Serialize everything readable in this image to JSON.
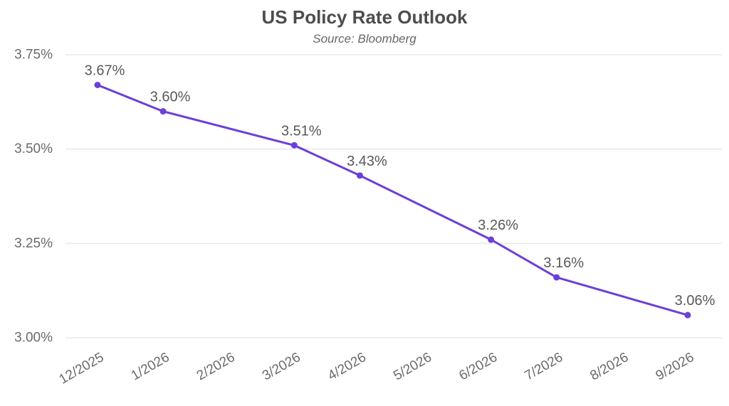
{
  "header": {
    "title": "US Policy Rate Outlook",
    "subtitle": "Source: Bloomberg"
  },
  "colors": {
    "background": "#ffffff",
    "line": "#6B3FD8",
    "marker": "#6B3FD8",
    "grid": "#e9e9ec",
    "title": "#4d4d4d",
    "subtitle": "#666666",
    "tick_label": "#6a6a6a",
    "data_label": "#585858"
  },
  "chart_data": {
    "type": "line",
    "title": "US Policy Rate Outlook",
    "subtitle": "Source: Bloomberg",
    "xlabel": "",
    "ylabel": "",
    "x_tick_labels": [
      "12/2025",
      "1/2026",
      "2/2026",
      "3/2026",
      "4/2026",
      "5/2026",
      "6/2026",
      "7/2026",
      "8/2026",
      "9/2026"
    ],
    "x_tick_rotation_deg": -30,
    "points": [
      {
        "x": "12/2025",
        "month_index": 0,
        "value": 3.67,
        "label": "3.67%"
      },
      {
        "x": "1/2026",
        "month_index": 1,
        "value": 3.6,
        "label": "3.60%"
      },
      {
        "x": "3/2026",
        "month_index": 3,
        "value": 3.51,
        "label": "3.51%"
      },
      {
        "x": "4/2026",
        "month_index": 4,
        "value": 3.43,
        "label": "3.43%"
      },
      {
        "x": "6/2026",
        "month_index": 6,
        "value": 3.26,
        "label": "3.26%"
      },
      {
        "x": "7/2026",
        "month_index": 7,
        "value": 3.16,
        "label": "3.16%"
      },
      {
        "x": "9/2026",
        "month_index": 9,
        "value": 3.06,
        "label": "3.06%"
      }
    ],
    "y_ticks": [
      {
        "value": 3.0,
        "label": "3.00%"
      },
      {
        "value": 3.25,
        "label": "3.25%"
      },
      {
        "value": 3.5,
        "label": "3.50%"
      },
      {
        "value": 3.75,
        "label": "3.75%"
      }
    ],
    "ylim": [
      3.0,
      3.75
    ],
    "grid": "horizontal-only",
    "legend": "none",
    "markers": true,
    "data_labels_shown": true
  }
}
